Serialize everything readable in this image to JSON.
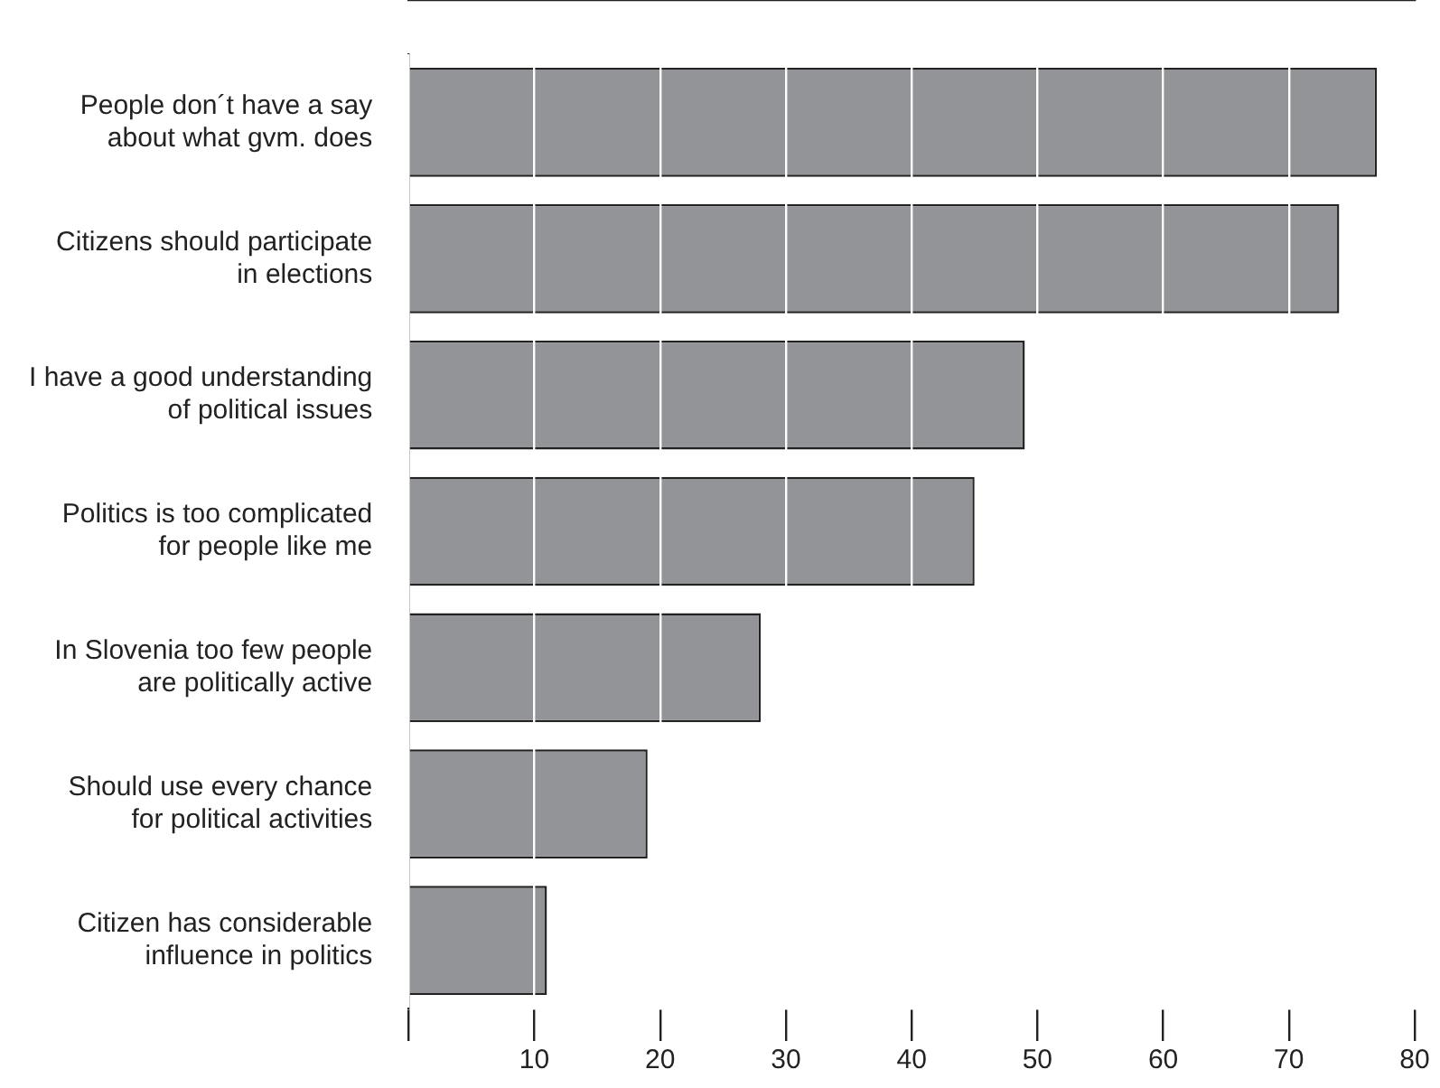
{
  "chart_data": {
    "type": "bar",
    "orientation": "horizontal",
    "categories": [
      "People don´t have a say\nabout what gvm. does",
      "Citizens should participate\nin elections",
      "I have a good understanding\nof political issues",
      "Politics is too complicated\nfor people like me",
      "In Slovenia too few people\nare politically active",
      "Should use every chance\nfor political activities",
      "Citizen has considerable\ninfluence in politics"
    ],
    "values": [
      77,
      74,
      49,
      45,
      28,
      19,
      11
    ],
    "color": "#939498",
    "xlim": [
      0,
      80
    ],
    "xticks": [
      {
        "value": 0,
        "label": null
      },
      10,
      20,
      30,
      40,
      50,
      60,
      70,
      80
    ],
    "grid": "x",
    "legend": false
  }
}
